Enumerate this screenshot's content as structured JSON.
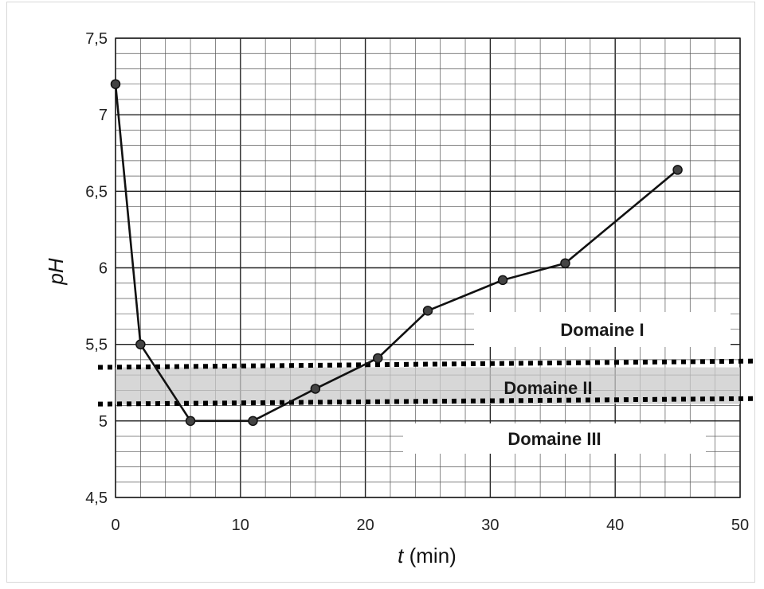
{
  "chart_data": {
    "type": "line",
    "title": "",
    "xlabel_italic": "t",
    "xlabel_unit": " (min)",
    "ylabel": "pH",
    "xlim": [
      0,
      50
    ],
    "ylim": [
      4.5,
      7.5
    ],
    "x_ticks": [
      0,
      10,
      20,
      30,
      40,
      50
    ],
    "x_tick_labels": [
      "0",
      "10",
      "20",
      "30",
      "40",
      "50"
    ],
    "y_ticks": [
      4.5,
      5,
      5.5,
      6,
      6.5,
      7,
      7.5
    ],
    "y_tick_labels": [
      "4,5",
      "5",
      "5,5",
      "6",
      "6,5",
      "7",
      "7,5"
    ],
    "grid": true,
    "series": [
      {
        "x": [
          0,
          2,
          6,
          11,
          16,
          21,
          25,
          31,
          36,
          45
        ],
        "y": [
          7.2,
          5.5,
          5.0,
          5.0,
          5.21,
          5.41,
          5.72,
          5.92,
          6.03,
          6.64
        ]
      }
    ],
    "domains": [
      {
        "label": "Domaine I"
      },
      {
        "label": "Domaine II",
        "y_range": [
          5.11,
          5.35
        ]
      },
      {
        "label": "Domaine III"
      }
    ]
  }
}
